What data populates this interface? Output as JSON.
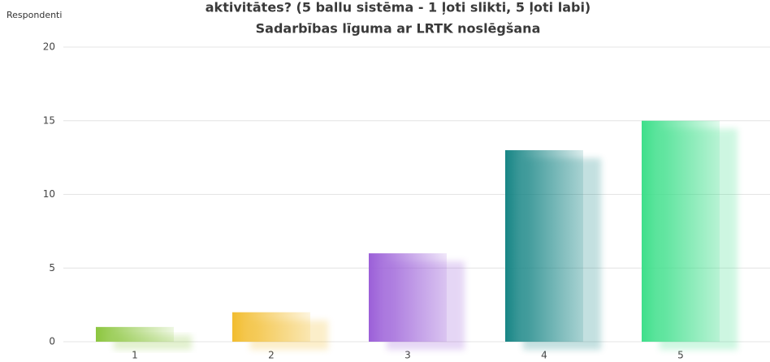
{
  "chart_data": {
    "type": "bar",
    "title": "aktivitātes?  (5 ballu sistēma - 1 ļoti slikti, 5 ļoti labi)",
    "subtitle": "Sadarbības līguma ar LRTK noslēgšana",
    "y_label": "Respondenti",
    "categories": [
      "1",
      "2",
      "3",
      "4",
      "5"
    ],
    "values": [
      1,
      2,
      6,
      13,
      15
    ],
    "colors": [
      "#8cc63f",
      "#f2bd2f",
      "#9b5fd8",
      "#178585",
      "#3ddf8a"
    ],
    "ylim": [
      0,
      20
    ],
    "yticks": [
      0,
      5,
      10,
      15,
      20
    ],
    "grid": true
  }
}
